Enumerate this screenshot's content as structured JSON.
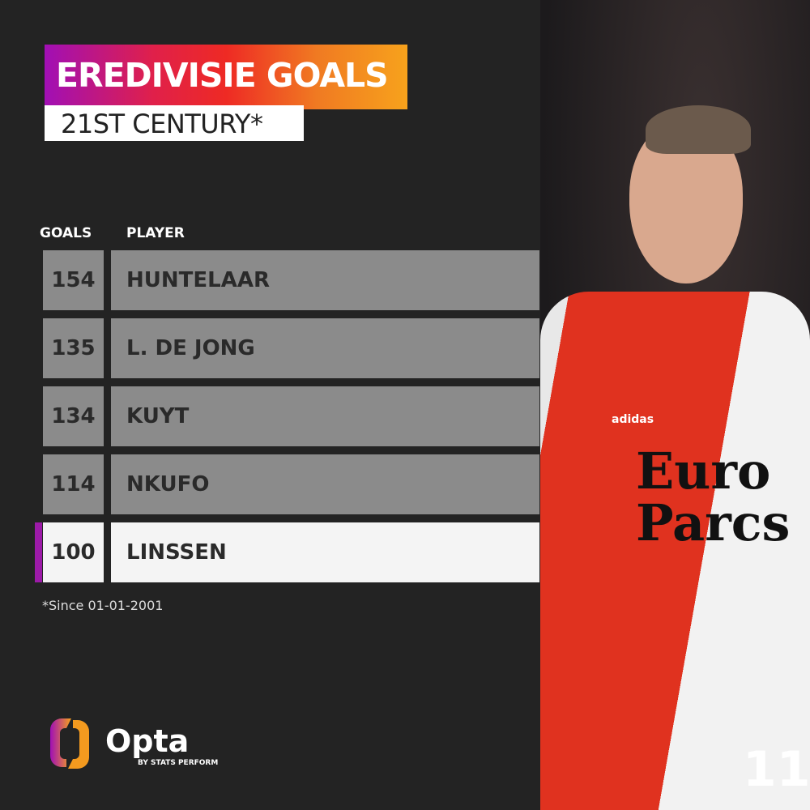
{
  "header": {
    "title": "EREDIVISIE GOALS",
    "subtitle": "21ST CENTURY*"
  },
  "chart_data": {
    "type": "table",
    "columns": [
      "GOALS",
      "PLAYER"
    ],
    "rows": [
      {
        "goals": "154",
        "player": "HUNTELAAR",
        "highlighted": false
      },
      {
        "goals": "135",
        "player": "L. DE JONG",
        "highlighted": false
      },
      {
        "goals": "134",
        "player": "KUYT",
        "highlighted": false
      },
      {
        "goals": "114",
        "player": "NKUFO",
        "highlighted": false
      },
      {
        "goals": "100",
        "player": "LINSSEN",
        "highlighted": true
      }
    ]
  },
  "footnote": "*Since 01-01-2001",
  "logo": {
    "name": "Opta",
    "tagline": "BY STATS PERFORM"
  },
  "photo": {
    "shirt_sponsor": "Euro Parcs",
    "kit_brand": "adidas",
    "shirt_number": "11"
  },
  "colors": {
    "background": "#232323",
    "row": "#8b8b8b",
    "highlight_row": "#f4f4f4",
    "accent": "#9c1aa8"
  }
}
